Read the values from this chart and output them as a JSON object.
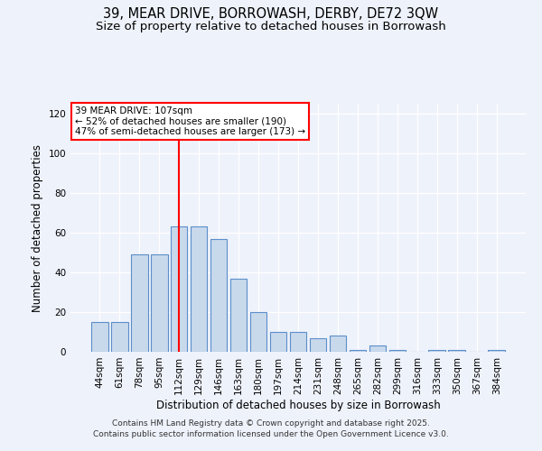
{
  "title_line1": "39, MEAR DRIVE, BORROWASH, DERBY, DE72 3QW",
  "title_line2": "Size of property relative to detached houses in Borrowash",
  "xlabel": "Distribution of detached houses by size in Borrowash",
  "ylabel": "Number of detached properties",
  "categories": [
    "44sqm",
    "61sqm",
    "78sqm",
    "95sqm",
    "112sqm",
    "129sqm",
    "146sqm",
    "163sqm",
    "180sqm",
    "197sqm",
    "214sqm",
    "231sqm",
    "248sqm",
    "265sqm",
    "282sqm",
    "299sqm",
    "316sqm",
    "333sqm",
    "350sqm",
    "367sqm",
    "384sqm"
  ],
  "values": [
    15,
    15,
    49,
    49,
    63,
    63,
    57,
    37,
    20,
    10,
    10,
    7,
    8,
    1,
    3,
    1,
    0,
    1,
    1,
    0,
    1
  ],
  "bar_color": "#c9d9ec",
  "bar_edge_color": "#5b8fc9",
  "vline_x": 4,
  "vline_color": "red",
  "ylim": [
    0,
    125
  ],
  "yticks": [
    0,
    20,
    40,
    60,
    80,
    100,
    120
  ],
  "annotation_box_text": "39 MEAR DRIVE: 107sqm\n← 52% of detached houses are smaller (190)\n47% of semi-detached houses are larger (173) →",
  "background_color": "#eef2fb",
  "footer_line1": "Contains HM Land Registry data © Crown copyright and database right 2025.",
  "footer_line2": "Contains public sector information licensed under the Open Government Licence v3.0.",
  "title_fontsize": 10.5,
  "subtitle_fontsize": 9.5,
  "axis_label_fontsize": 8.5,
  "tick_fontsize": 7.5,
  "annotation_fontsize": 7.5,
  "footer_fontsize": 6.5
}
